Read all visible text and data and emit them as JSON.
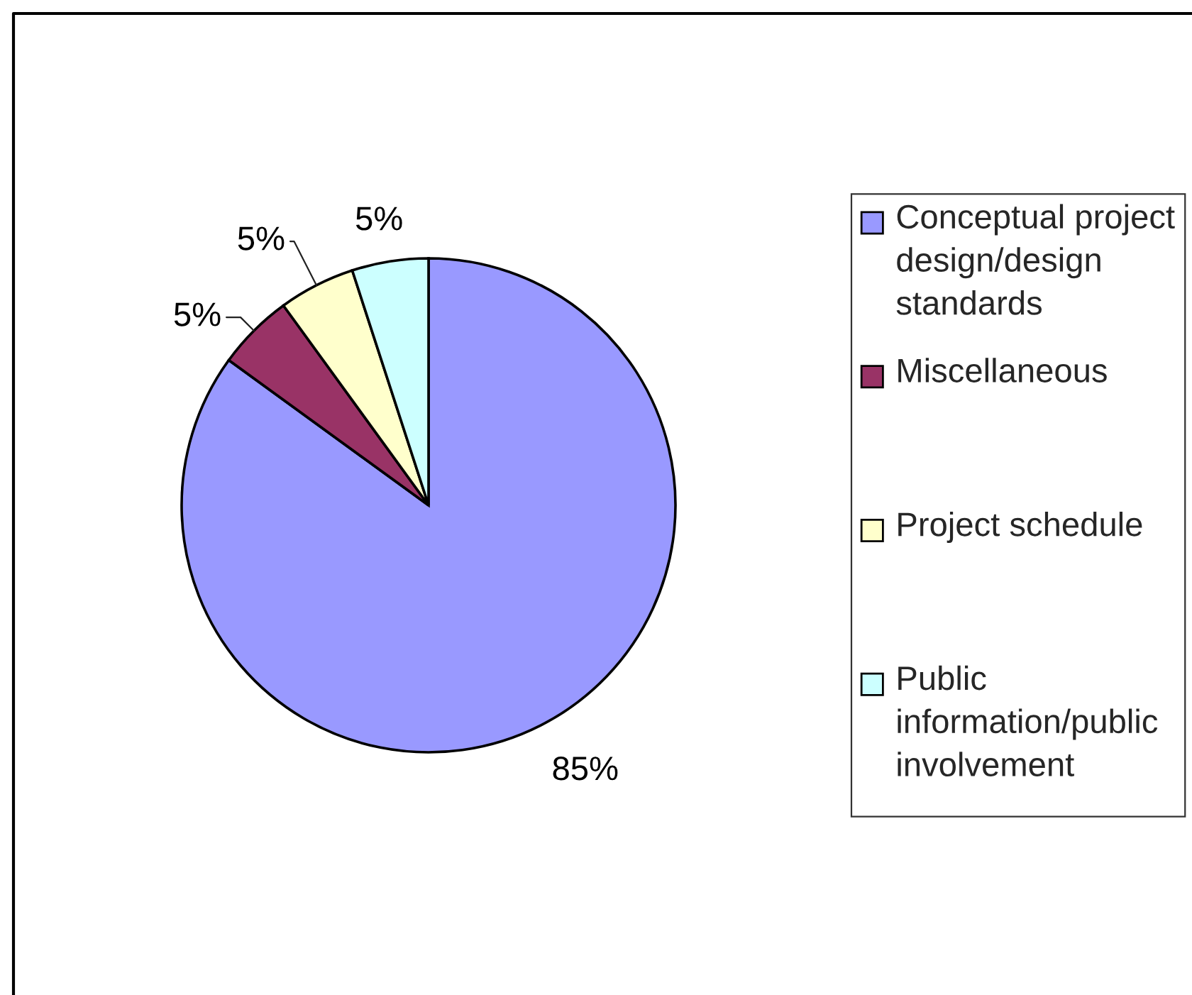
{
  "chart_data": {
    "type": "pie",
    "categories": [
      "Conceptual project design/design standards",
      "Miscellaneous",
      "Project schedule",
      "Public information/public involvement"
    ],
    "values": [
      85,
      5,
      5,
      5
    ],
    "colors": [
      "#9999ff",
      "#993366",
      "#ffffcc",
      "#ccffff"
    ],
    "value_labels": [
      "85%",
      "5%",
      "5%",
      "5%"
    ],
    "legend": "right"
  }
}
